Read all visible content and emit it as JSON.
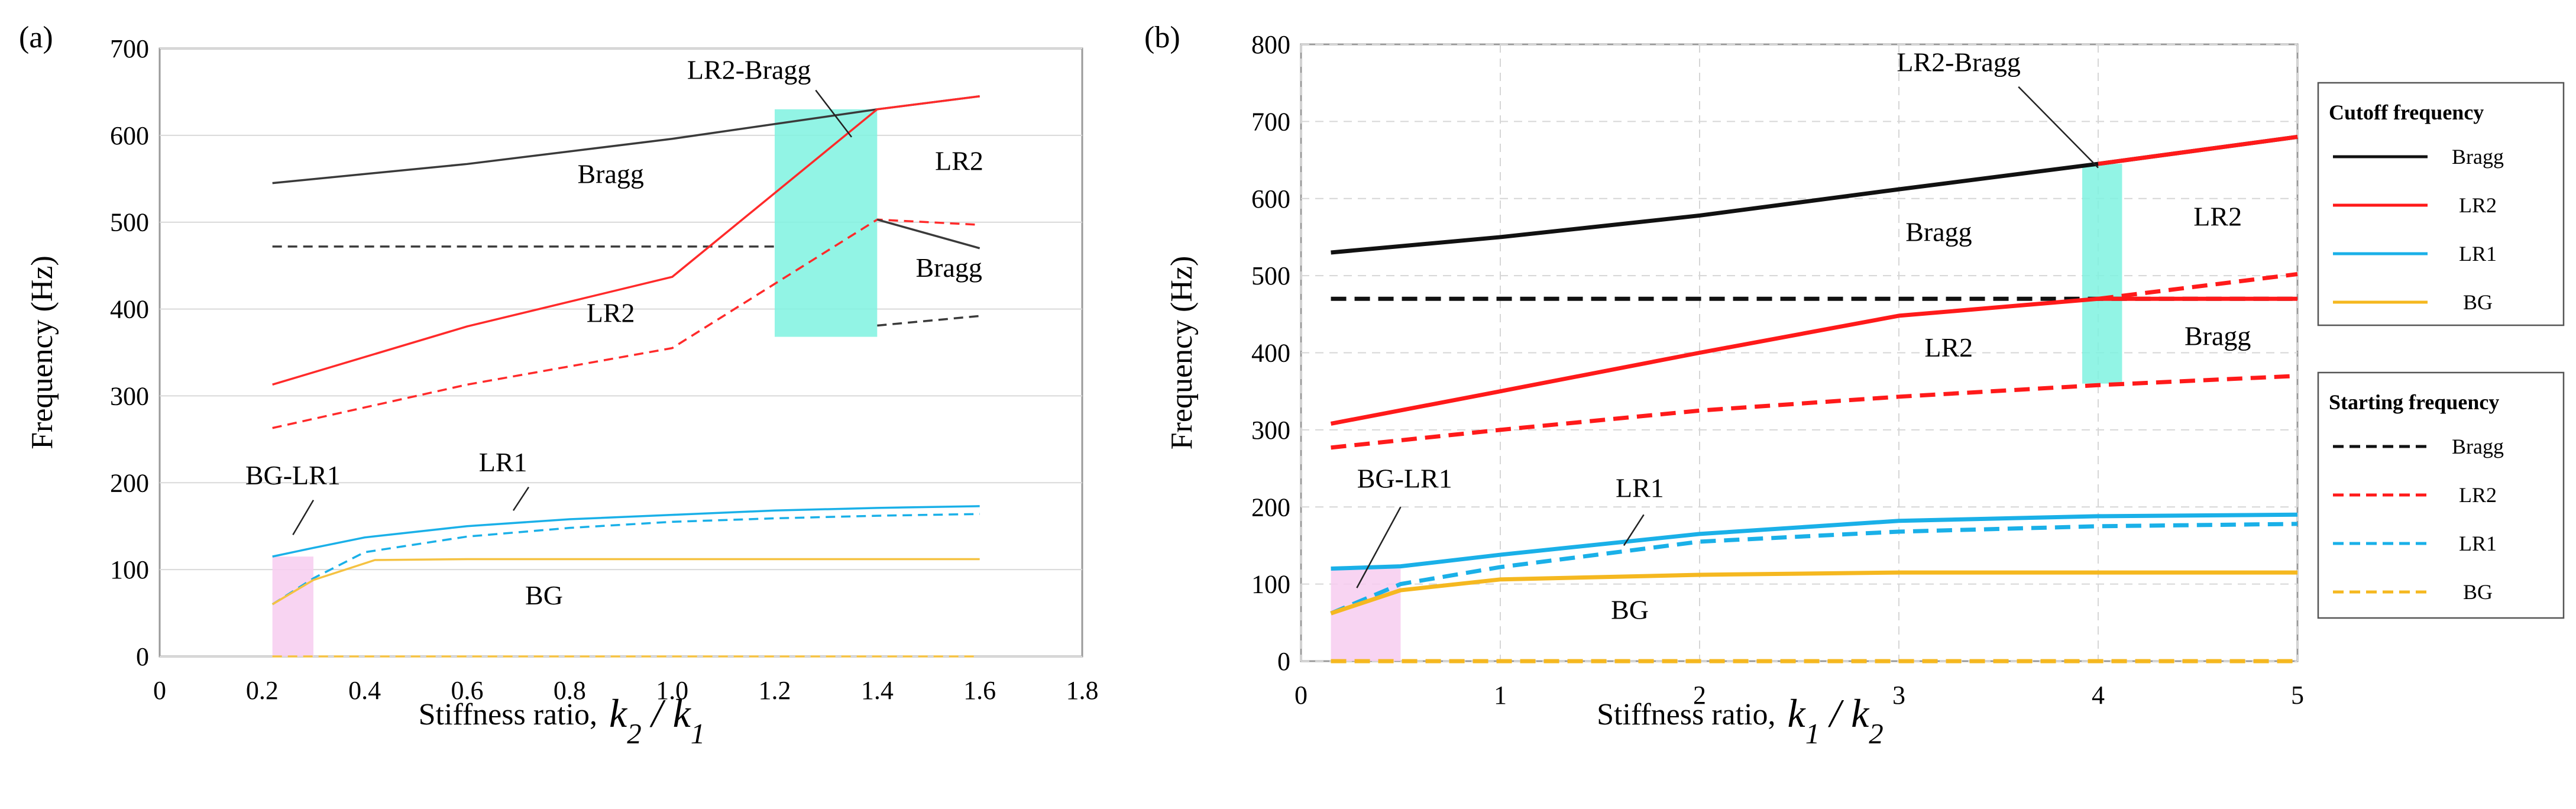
{
  "chart_data": [
    {
      "panel": "(a)",
      "type": "line",
      "xlabel_prefix": "Stiffness ratio,",
      "xlabel_ratio": "k2 / k1",
      "ylabel": "Frequency (Hz)",
      "xlim": [
        0,
        1.8
      ],
      "ylim": [
        0,
        700
      ],
      "xticks": [
        0,
        0.2,
        0.4,
        0.6,
        0.8,
        1.0,
        1.2,
        1.4,
        1.6,
        1.8
      ],
      "xticklabels": [
        "0",
        "0.2",
        "0.4",
        "0.6",
        "0.8",
        "1.0",
        "1.2",
        "1.4",
        "1.6",
        "1.8"
      ],
      "yticks": [
        0,
        100,
        200,
        300,
        400,
        500,
        600,
        700
      ],
      "yticklabels": [
        "0",
        "100",
        "200",
        "300",
        "400",
        "500",
        "600",
        "700"
      ],
      "grid": "horizontal",
      "series": [
        {
          "name": "Bragg cutoff",
          "style": "solid",
          "color": "#3a3a3a",
          "x": [
            0.22,
            0.6,
            1.0,
            1.4,
            1.6
          ],
          "y": [
            545,
            567,
            596,
            630,
            645
          ]
        },
        {
          "name": "Bragg starting",
          "style": "dashed",
          "color": "#3a3a3a",
          "x": [
            0.22,
            1.2
          ],
          "y": [
            472,
            472
          ]
        },
        {
          "name": "LR2 cutoff",
          "style": "solid",
          "color": "#ff2a2a",
          "x": [
            0.22,
            0.6,
            1.0,
            1.4,
            1.6
          ],
          "y": [
            313,
            380,
            437,
            630,
            645
          ]
        },
        {
          "name": "LR2 starting",
          "style": "dashed",
          "color": "#ff2a2a",
          "x": [
            0.22,
            0.6,
            1.0,
            1.4,
            1.6
          ],
          "y": [
            263,
            313,
            355,
            503,
            497
          ]
        },
        {
          "name": "Bragg cutoff upper",
          "style": "solid",
          "color": "#3a3a3a",
          "x": [
            1.4,
            1.6
          ],
          "y": [
            503,
            470
          ]
        },
        {
          "name": "Bragg starting upper",
          "style": "dashed",
          "color": "#3a3a3a",
          "x": [
            1.4,
            1.6
          ],
          "y": [
            381,
            392
          ]
        },
        {
          "name": "LR1 cutoff",
          "style": "solid",
          "color": "#1ab0e8",
          "x": [
            0.22,
            0.3,
            0.4,
            0.6,
            0.8,
            1.0,
            1.2,
            1.4,
            1.6
          ],
          "y": [
            115,
            125,
            137,
            150,
            158,
            163,
            168,
            171,
            173
          ]
        },
        {
          "name": "LR1 starting",
          "style": "dashed",
          "color": "#1ab0e8",
          "x": [
            0.22,
            0.3,
            0.4,
            0.6,
            0.8,
            1.0,
            1.2,
            1.4,
            1.6
          ],
          "y": [
            60,
            90,
            120,
            138,
            148,
            155,
            159,
            162,
            164
          ]
        },
        {
          "name": "BG cutoff",
          "style": "solid",
          "color": "#f5c242",
          "x": [
            0.22,
            0.3,
            0.42,
            0.6,
            1.0,
            1.6
          ],
          "y": [
            60,
            88,
            111,
            112,
            112,
            112
          ]
        },
        {
          "name": "BG starting",
          "style": "dashed",
          "color": "#f5c242",
          "x": [
            0.22,
            1.6
          ],
          "y": [
            0,
            0
          ]
        }
      ],
      "shaded_regions": [
        {
          "label": "LR2-Bragg",
          "color": "#7ff2e0",
          "x": [
            1.2,
            1.4
          ],
          "y": [
            368,
            630
          ]
        },
        {
          "label": "BG-LR1",
          "color": "#f7ccf0",
          "x": [
            0.22,
            0.3
          ],
          "y": [
            0,
            115
          ]
        }
      ],
      "annotations": [
        {
          "text": "LR2-Bragg",
          "x": 1.15,
          "y": 665
        },
        {
          "text": "Bragg",
          "x": 0.88,
          "y": 545
        },
        {
          "text": "LR2",
          "x": 1.56,
          "y": 560
        },
        {
          "text": "Bragg",
          "x": 1.54,
          "y": 437
        },
        {
          "text": "LR2",
          "x": 0.88,
          "y": 385
        },
        {
          "text": "BG-LR1",
          "x": 0.26,
          "y": 198
        },
        {
          "text": "LR1",
          "x": 0.67,
          "y": 213
        },
        {
          "text": "BG",
          "x": 0.75,
          "y": 60
        }
      ]
    },
    {
      "panel": "(b)",
      "type": "line",
      "xlabel_prefix": "Stiffness ratio,",
      "xlabel_ratio": "k1 / k2",
      "ylabel": "Frequency (Hz)",
      "xlim": [
        0,
        5
      ],
      "ylim": [
        0,
        800
      ],
      "xticks": [
        0,
        1,
        2,
        3,
        4,
        5
      ],
      "xticklabels": [
        "0",
        "1",
        "2",
        "3",
        "4",
        "5"
      ],
      "yticks": [
        0,
        100,
        200,
        300,
        400,
        500,
        600,
        700,
        800
      ],
      "yticklabels": [
        "0",
        "100",
        "200",
        "300",
        "400",
        "500",
        "600",
        "700",
        "800"
      ],
      "grid": "both",
      "series": [
        {
          "name": "Bragg cutoff",
          "style": "solid",
          "color": "#111111",
          "x": [
            0.15,
            1,
            2,
            3,
            4,
            5
          ],
          "y": [
            530,
            550,
            578,
            612,
            645,
            680
          ]
        },
        {
          "name": "Bragg starting",
          "style": "dashed",
          "color": "#111111",
          "x": [
            0.15,
            1,
            2,
            3,
            4,
            5
          ],
          "y": [
            470,
            470,
            470,
            470,
            470,
            470
          ]
        },
        {
          "name": "LR2 cutoff",
          "style": "solid",
          "color": "#ff1a1a",
          "x": [
            0.15,
            1,
            2,
            3,
            4,
            5
          ],
          "y": [
            308,
            350,
            400,
            448,
            470,
            470
          ]
        },
        {
          "name": "LR2 starting",
          "style": "dashed",
          "color": "#ff1a1a",
          "x": [
            0.15,
            1,
            2,
            3,
            4,
            5
          ],
          "y": [
            277,
            300,
            325,
            343,
            358,
            370
          ]
        },
        {
          "name": "Bragg cutoff upper",
          "style": "solid",
          "color": "#ff1a1a",
          "x": [
            4,
            5
          ],
          "y": [
            645,
            680
          ]
        },
        {
          "name": "LR2 starting upper",
          "style": "dashed",
          "color": "#ff1a1a",
          "x": [
            4,
            5
          ],
          "y": [
            470,
            502
          ]
        },
        {
          "name": "LR1 cutoff",
          "style": "solid",
          "color": "#1ab0e8",
          "x": [
            0.15,
            0.5,
            1,
            2,
            3,
            4,
            5
          ],
          "y": [
            120,
            123,
            138,
            165,
            182,
            188,
            190
          ]
        },
        {
          "name": "LR1 starting",
          "style": "dashed",
          "color": "#1ab0e8",
          "x": [
            0.15,
            0.5,
            1,
            2,
            3,
            4,
            5
          ],
          "y": [
            62,
            100,
            122,
            155,
            168,
            175,
            178
          ]
        },
        {
          "name": "BG cutoff",
          "style": "solid",
          "color": "#f5b820",
          "x": [
            0.15,
            0.5,
            1,
            2,
            3,
            4,
            5
          ],
          "y": [
            62,
            92,
            106,
            112,
            115,
            115,
            115
          ]
        },
        {
          "name": "BG starting",
          "style": "dashed",
          "color": "#f5b820",
          "x": [
            0.15,
            5
          ],
          "y": [
            0,
            0
          ]
        }
      ],
      "shaded_regions": [
        {
          "label": "LR2-Bragg",
          "color": "#7ff2e0",
          "x": [
            3.92,
            4.12
          ],
          "y": [
            360,
            645
          ]
        },
        {
          "label": "BG-LR1",
          "color": "#f7ccf0",
          "x": [
            0.15,
            0.5
          ],
          "y": [
            0,
            120
          ]
        }
      ],
      "annotations": [
        {
          "text": "LR2-Bragg",
          "x": 3.3,
          "y": 765
        },
        {
          "text": "Bragg",
          "x": 3.2,
          "y": 545
        },
        {
          "text": "LR2",
          "x": 4.6,
          "y": 565
        },
        {
          "text": "Bragg",
          "x": 4.6,
          "y": 410
        },
        {
          "text": "LR2",
          "x": 3.25,
          "y": 395
        },
        {
          "text": "BG-LR1",
          "x": 0.52,
          "y": 225
        },
        {
          "text": "LR1",
          "x": 1.7,
          "y": 213
        },
        {
          "text": "BG",
          "x": 1.65,
          "y": 55
        }
      ],
      "legends": [
        {
          "title": "Cutoff frequency",
          "items": [
            {
              "label": "Bragg",
              "style": "solid",
              "color": "#111111"
            },
            {
              "label": "LR2",
              "style": "solid",
              "color": "#ff1a1a"
            },
            {
              "label": "LR1",
              "style": "solid",
              "color": "#1ab0e8"
            },
            {
              "label": "BG",
              "style": "solid",
              "color": "#f5b820"
            }
          ]
        },
        {
          "title": "Starting frequency",
          "items": [
            {
              "label": "Bragg",
              "style": "dashed",
              "color": "#111111"
            },
            {
              "label": "LR2",
              "style": "dashed",
              "color": "#ff1a1a"
            },
            {
              "label": "LR1",
              "style": "dashed",
              "color": "#1ab0e8"
            },
            {
              "label": "BG",
              "style": "dashed",
              "color": "#f5b820"
            }
          ]
        }
      ]
    }
  ]
}
